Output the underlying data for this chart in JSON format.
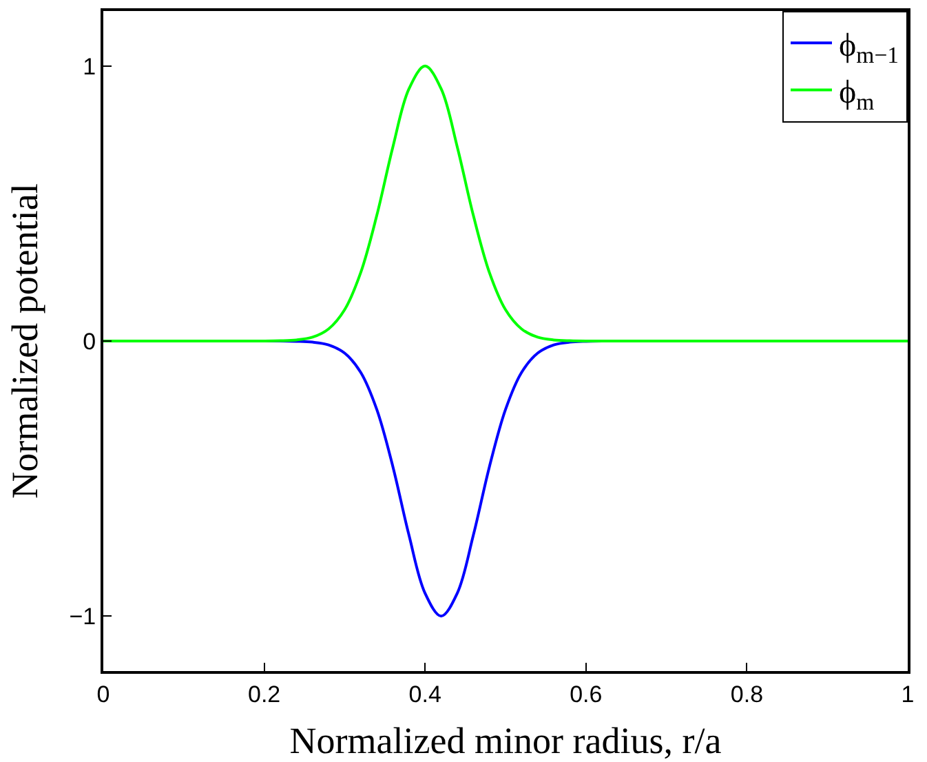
{
  "chart_data": {
    "type": "line",
    "xlabel": "Normalized minor radius, r/a",
    "ylabel": "Normalized potential",
    "x": [
      0,
      0.1,
      0.2,
      0.22,
      0.24,
      0.26,
      0.28,
      0.3,
      0.32,
      0.34,
      0.36,
      0.38,
      0.4,
      0.42,
      0.44,
      0.46,
      0.48,
      0.5,
      0.52,
      0.54,
      0.56,
      0.58,
      0.6,
      0.62,
      0.64,
      0.7,
      0.8,
      0.9,
      1
    ],
    "series": [
      {
        "name": "ϕ$_{m−1}$",
        "color": "#0000ff",
        "values": [
          null,
          null,
          0,
          0,
          -0.001,
          -0.004,
          -0.014,
          -0.044,
          -0.114,
          -0.249,
          -0.457,
          -0.706,
          -0.917,
          -1,
          -0.917,
          -0.706,
          -0.457,
          -0.249,
          -0.114,
          -0.044,
          -0.014,
          -0.004,
          -0.001,
          0,
          null,
          null,
          null,
          null,
          null
        ]
      },
      {
        "name": "ϕ$_{m}$",
        "color": "#00ff00",
        "values": [
          0,
          0,
          0,
          0.001,
          0.004,
          0.014,
          0.044,
          0.114,
          0.249,
          0.457,
          0.706,
          0.917,
          1,
          0.917,
          0.706,
          0.457,
          0.249,
          0.114,
          0.044,
          0.014,
          0.004,
          0.001,
          0,
          0,
          0,
          0,
          0,
          0,
          0
        ]
      }
    ],
    "xlim": [
      0,
      1
    ],
    "xticks": [
      0,
      0.2,
      0.4,
      0.6,
      0.8,
      1
    ],
    "ylim": [
      -1.2,
      1.2
    ],
    "yticks": [
      {
        "value": -1,
        "label": "−1"
      },
      0,
      1
    ],
    "legend": "top right",
    "grid": false,
    "marker": "none",
    "line_style": "solid"
  }
}
